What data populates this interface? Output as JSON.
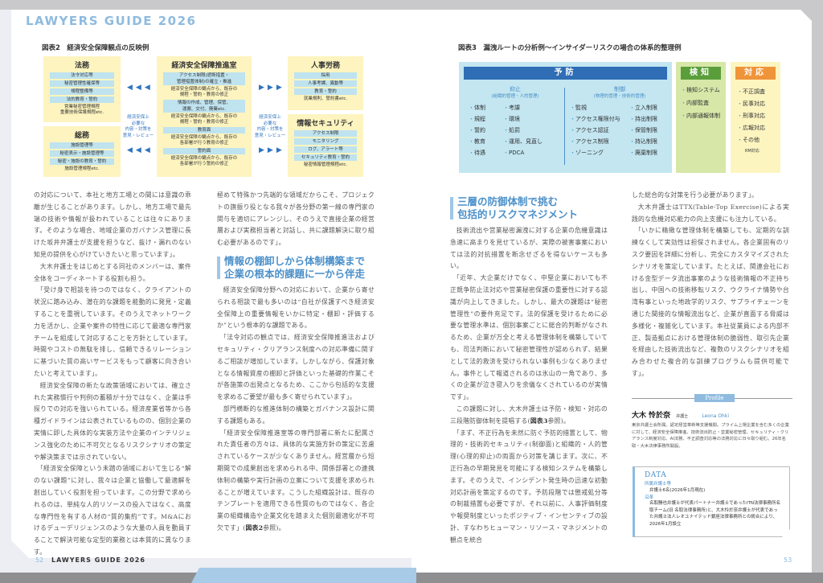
{
  "brand": "LAWYERS GUIDE 2026",
  "fig2": {
    "title": "図表2　経済安全保障観点の反映例",
    "legal": {
      "title": "法務",
      "items": [
        "法令対応等",
        "秘密管理性確保等",
        "規程整備等",
        "法的教育・誓約"
      ],
      "note": [
        "営業秘密管理規程",
        "重要技術保護規程etc."
      ]
    },
    "general": {
      "title": "総務",
      "items": [
        "施設管理等",
        "秘密表示・施設管理等",
        "秘密・施設の教育・誓約"
      ],
      "note": [
        "施設管理規程etc."
      ]
    },
    "center": {
      "title": "経済安全保障推進室",
      "blocks": [
        {
          "bar": [
            "アクセス制限(遮断措置・",
            "管理措置体制)の確立・推進"
          ],
          "note": [
            "経済安全保障の観点から、既存の",
            "規程・誓約・教育の修正"
          ]
        },
        {
          "bar": [
            "情報の作成、管理、保管、",
            "運搬、交付、廃棄etc."
          ],
          "note": [
            "経済安全保障の観点から、既存の",
            "規程・誓約・教育の修正"
          ]
        },
        {
          "bar": [
            "教育面"
          ],
          "note": [
            "経済安全保障の観点から、既存の",
            "各部署が行う教育の修正"
          ]
        },
        {
          "bar": [
            "誓約面"
          ],
          "note": [
            "経済安全保障の観点から、既存の",
            "各部署が行う誓約の修正"
          ]
        }
      ]
    },
    "hr": {
      "title": "人事労務",
      "items": [
        "採用",
        "人事考課、異動等",
        "教育・誓約"
      ],
      "note": [
        "就業規則、誓約書etc."
      ]
    },
    "infosec": {
      "title": "情報セキュリティ",
      "items": [
        "アクセス制限",
        "モニタリング",
        "ログ、アラート等",
        "セキュリティ教育・誓約"
      ],
      "note": [
        "秘密情報管理規程etc."
      ]
    },
    "review_label": [
      "経済安保上",
      "必要な",
      "内容・対策を",
      "意見・レビュー"
    ],
    "arrow_left": "◀◀◀",
    "arrow_right": "▶▶▶"
  },
  "fig3": {
    "title": "図表3　漏洩ルートの分析例〜インサイダーリスクの場合の体系的整理例",
    "prevent": {
      "title": "予防",
      "deter": {
        "title": "抑止",
        "subtitle": "(組織的管理・人的管理)",
        "col1": [
          "体制",
          "規程",
          "誓約",
          "教育",
          "待遇"
        ],
        "col2": [
          "考課",
          "環境",
          "処罰",
          "運用、見直し",
          "PDCA"
        ]
      },
      "control": {
        "title": "制御",
        "subtitle": "(物理的管理・技術的管理)",
        "col1": [
          "監視",
          "アクセス権限付与",
          "アクセス認証",
          "アクセス制限",
          "ゾーニング"
        ],
        "col2": [
          "立入制限",
          "持出制限",
          "保管制限",
          "持込制限",
          "廃棄制限"
        ]
      }
    },
    "detect": {
      "title": "検知",
      "items": [
        "検知システム",
        "内部監査",
        "内部通報体制"
      ]
    },
    "respond": {
      "title": "対応",
      "items": [
        "不正調査",
        "民事対応",
        "刑事対応",
        "広報対応",
        "その他"
      ],
      "note": "RM対応"
    },
    "colors": {
      "prevent_bg": "#c3e6f1",
      "prevent_head": "#2f6db5",
      "detect_bg": "#d6e7a8",
      "detect_head": "#5a9e3c",
      "respond_bg": "#fdf5c0",
      "respond_head": "#f0943a"
    }
  },
  "left_col1": [
    "の対応について、本社と地方工場との間には意識の乖離が生じることがあります。しかし、地方工場で最先端の技術や情報が扱われていることは往々にあります。そのような場合、地域企業のガバナンス管理に長けた坂井弁護士が支援を担うなど、抜け・漏れのない知見の提供を心がけていきたいと思っています」。",
    "大木弁護士をはじめとする同社のメンバーは、案件全体をコーディネートする役割も担う。",
    "「受け身で相談を待つのではなく、クライアントの状況に踏み込み、潜在的な課題を能動的に発見・定義することを重視しています。そのうえでネットワーク力を活かし、企業や案件の特性に応じて最適な専門家チームを組成して対応することを方針としています。時間やコストの無駄を排し、信頼できるリレーションに基づいた質の高いサービスをもって顧客に向き合いたいと考えています」。",
    "経済安全保障の新たな政策領域においては、確立された実務慣行や判例の蓄積が十分ではなく、企業は手探りでの対応を強いられている。経済産業省等から各種ガイドラインは公表されているものの、個別企業の実情に即した具体的な実装方法や企業のインテリジェンス強化のために不可欠となるリスクシナリオの策定や解決策までは示されていない。",
    "「経済安全保障という未踏の領域において生じる“解のない課題”に対し、我々は企業と協働して最適解を創出していく役割を担っています。この分野で求められるのは、単純な人的リソースの投入ではなく、高度な専門性を有する人材の“質的集約”です。M&Aにおけるデューデリジェンスのような大量の人員を動員することで解決可能な定型的業務とは本質的に異なります。"
  ],
  "left_col2": {
    "p0": "極めて特殊かつ先端的な領域だからこそ、プロジェクトの旗振り役となる我々が各分野の第一線の専門家の関与を適切にアレンジし、そのうえで直接企業の経営層および実務担当者と対話し、共に課題解決に取り組む必要があるのです」。",
    "heading": [
      "情報の棚卸しから体制構築まで",
      "企業の根本的課題に一から伴走"
    ],
    "p1": "経済安全保障分野への対応において、企業から寄せられる相談で最も多いのは“自社が保護すべき経済安全保障上の重要情報をいかに特定・棚卸・評価するか”という根本的な課題である。",
    "p2": "「法令対応の観点では、経済安全保障推進法およびセキュリティ・クリアランス制度への対応準備に関するご相談が増加しています。しかしながら、保護対象となる情報資産の棚卸と評価といった基礎的作業こそが各施策の出発点となるため、ここから包括的な支援を求めるご要望が最も多く寄せられています」。",
    "p3": "部門横断的な推進体制の構築とガバナンス設計に関する課題もある。",
    "p4": "「経済安全保障推進室等の専門部署に新たに配属された責任者の方々は、具体的な実施方針の策定に苦慮されているケースが少なくありません。経営層から短期間での成果創出を求められる中、関係部署との連携体制の構築や実行計画の立案について支援を求められることが増えています。こうした組織設計は、既存のテンプレートを適用できる性質のものではなく、各企業の組織構造や企業文化を踏まえた個別最適化が不可欠です」(",
    "p4_ref": "図表2",
    "p4_tail": "参照)。"
  },
  "right_col1": {
    "heading": [
      "三層の防御体制で挑む",
      "包括的リスクマネジメント"
    ],
    "p1": "技術流出や営業秘密漏洩に対する企業の危機意識は急速に高まりを見せているが、実際の被害事案においては法的対抗措置を断念せざるを得ないケースも多い。",
    "p2": "「近年、大企業だけでなく、中堅企業においても不正競争防止法対応や営業秘密保護の重要性に対する認識が向上してきました。しかし、最大の課題は“秘密管理性”の要件充足です。法的保護を受けるために必要な管理水準は、個別事案ごとに総合的判断がなされるため、企業が万全と考える管理体制を構築していても、司法判断において秘密管理性が認められず、結果として法的救済を受けられない事例も少なくありません。事件として報道されるのは氷山の一角であり、多くの企業が泣き寝入りを余儀なくされているのが実情です」。",
    "p3": "この課題に対し、大木弁護士は予防・検知・対応の三段階防御体制を提唱する(",
    "p3_ref": "図表3",
    "p3_tail": "参照)。",
    "p4": "「まず、不正行為を未然に防ぐ予防的措置として、物理的・技術的セキュリティ(制御面)と組織的・人的管理(心理的抑止)の両面から対策を講じます。次に、不正行為の早期発見を可能にする検知システムを構築します。そのうえで、インシデント発生時の迅速な初動対応計画を策定するのです。予防段階では懲戒処分等の制裁措置も必要ですが、それ以前に、人事評価制度や報奨制度といったポジティブ・インセンティブの設計、すなわちヒューマン・リソース・マネジメントの観点を統合"
  },
  "right_col2": [
    "した総合的な対策を行う必要があります」。",
    "大木弁護士はTTX(Table-Top Exercise)による実践的な危機対応能力の向上支援にも注力している。",
    "「いかに精緻な管理体制を構築しても、定期的な訓練なくして実効性は担保されません。各企業固有のリスク要因を詳細に分析し、完全にカスタマイズされたシナリオを策定しています。たとえば、関連会社における金型データ流出事案のような技術情報の不正持ち出し、中国への技術移転リスク、ウクライナ情勢や台湾有事といった地政学的リスク、サプライチェーンを通じた間接的な情報流出など、企業が直面する脅威は多様化・複雑化しています。本社従業員による内部不正、製造拠点における管理体制の脆弱性、取引先企業を経由した技術流出など、複数のリスクシナリオを組み合わせた複合的な訓練プログラムも提供可能です」。"
  ],
  "profile": {
    "label": "Profile",
    "name": "大木 怜於奈",
    "role": "弁護士",
    "romaji": "Leona Ohki",
    "bio": "東京弁護士会所属。認定経営革新等支援機関。プライム上場企業を含む多くの企業に対して、経済安全保障推進、技術流出防止・営業秘密管理、セキュリティ・クリアランス制度対応、AI法務、不正調査対応等の法務対応に日々取り組む。26年名取・大木法律事務所開設。"
  },
  "data_box": {
    "title": "DATA",
    "staff_label": "所属弁護士等",
    "staff": "弁護士6名(2026年1月現在)",
    "history_label": "沿革",
    "history": "名取勝也弁護士が代表パートナー弁護士であったITN法律事務所名取チーム(旧 名取法律事務所)と、大木怜於奈弁護士が代表であった弁護士法人レオユナイテッド銀座法律事務所との統合により、2026年1月設立"
  },
  "footer": {
    "left_page": "52",
    "left_title": "LAWYERS GUIDE 2026",
    "right_page": "53"
  }
}
